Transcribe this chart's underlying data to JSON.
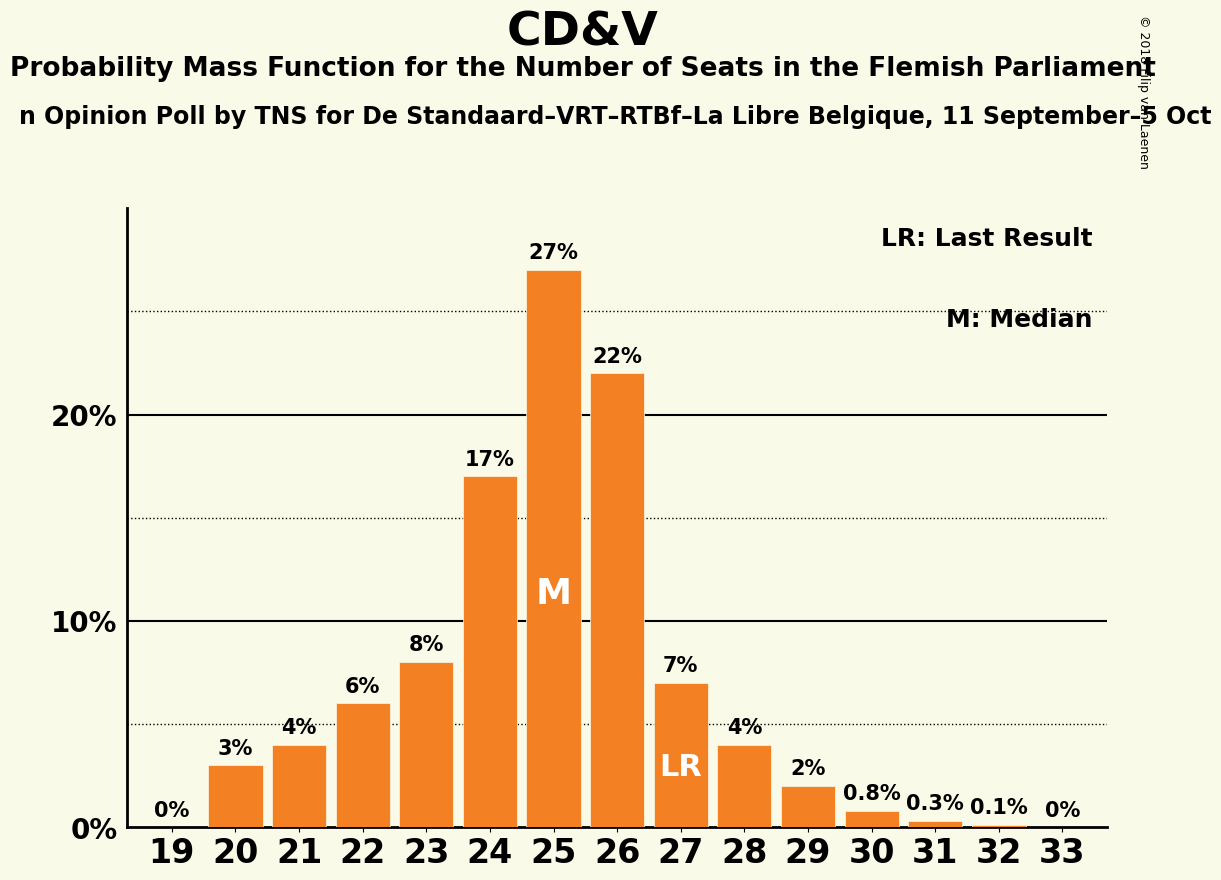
{
  "title": "CD&V",
  "subtitle": "Probability Mass Function for the Number of Seats in the Flemish Parliament",
  "subtitle2_display": "n Opinion Poll by TNS for De Standaard–VRT–RTBf–La Libre Belgique, 11 September–5 Oct",
  "copyright_text": "© 2018 Filip van Laenen",
  "seats": [
    19,
    20,
    21,
    22,
    23,
    24,
    25,
    26,
    27,
    28,
    29,
    30,
    31,
    32,
    33
  ],
  "probabilities": [
    0.0,
    3.0,
    4.0,
    6.0,
    8.0,
    17.0,
    27.0,
    22.0,
    7.0,
    4.0,
    2.0,
    0.8,
    0.3,
    0.1,
    0.0
  ],
  "bar_color": "#F48024",
  "background_color": "#FAFAE8",
  "bar_labels": [
    "0%",
    "3%",
    "4%",
    "6%",
    "8%",
    "17%",
    "27%",
    "22%",
    "7%",
    "4%",
    "2%",
    "0.8%",
    "0.3%",
    "0.1%",
    "0%"
  ],
  "median_seat": 25,
  "lr_seat": 27,
  "median_label": "M",
  "lr_label": "LR",
  "yticks": [
    0,
    10,
    20
  ],
  "ytick_labels": [
    "0%",
    "10%",
    "20%"
  ],
  "dotted_lines": [
    5,
    15,
    25
  ],
  "ylim": [
    0,
    30
  ],
  "legend_lr": "LR: Last Result",
  "legend_m": "M: Median",
  "title_fontsize": 34,
  "subtitle_fontsize": 19,
  "subtitle2_fontsize": 17,
  "ylabel_fontsize": 20,
  "xlabel_fontsize": 24,
  "bar_label_fontsize": 15,
  "inside_label_fontsize_m": 26,
  "inside_label_fontsize_lr": 22,
  "legend_fontsize": 18
}
